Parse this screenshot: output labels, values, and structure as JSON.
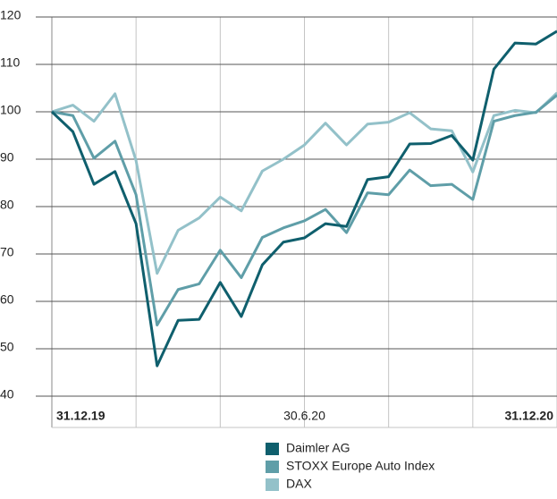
{
  "chart_data": {
    "type": "line",
    "categories": [
      "31.12.19",
      null,
      null,
      null,
      null,
      null,
      null,
      null,
      null,
      null,
      null,
      null,
      "30.6.20",
      null,
      null,
      null,
      null,
      null,
      null,
      null,
      null,
      null,
      null,
      null,
      "31.12.20"
    ],
    "series": [
      {
        "name": "Daimler AG",
        "color": "#0f5f6d",
        "values": [
          100,
          95.8,
          84.7,
          87.4,
          76.4,
          46.4,
          56,
          56.2,
          64,
          56.8,
          67.7,
          72.5,
          73.4,
          76.4,
          75.8,
          85.7,
          86.3,
          93.2,
          93.3,
          95,
          89.8,
          109,
          114.5,
          114.3,
          117
        ]
      },
      {
        "name": "STOXX Europe Auto Index",
        "color": "#5f9ea8",
        "values": [
          100,
          99.2,
          90.2,
          93.8,
          82.5,
          55,
          62.5,
          63.7,
          70.8,
          65,
          73.5,
          75.5,
          77,
          79.4,
          74.5,
          82.9,
          82.5,
          87.7,
          84.4,
          84.7,
          81.5,
          98,
          99.2,
          99.9,
          103.5
        ]
      },
      {
        "name": "DAX",
        "color": "#93c1c9",
        "values": [
          100,
          101.4,
          98,
          103.8,
          89.7,
          65.9,
          75,
          77.6,
          82,
          79.1,
          87.5,
          90,
          93,
          97.6,
          93,
          97.4,
          97.8,
          99.8,
          96.4,
          96,
          87.3,
          99.2,
          100.3,
          99.8,
          104
        ]
      }
    ],
    "ylim": [
      40,
      120
    ],
    "yticks": [
      40,
      50,
      60,
      70,
      80,
      90,
      100,
      110,
      120
    ],
    "grid": true
  }
}
